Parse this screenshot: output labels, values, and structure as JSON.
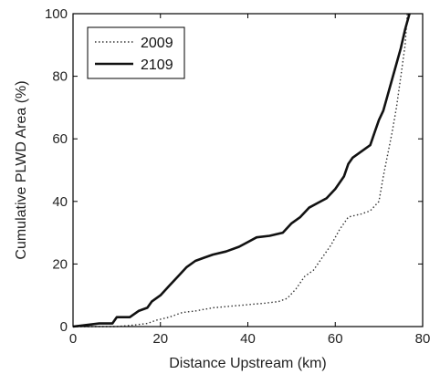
{
  "chart_data": {
    "type": "line",
    "title": "",
    "xlabel": "Distance Upstream (km)",
    "ylabel": "Cumulative PLWD Area (%)",
    "xlim": [
      0,
      80
    ],
    "ylim": [
      0,
      100
    ],
    "x_ticks": [
      "0",
      "20",
      "40",
      "60",
      "80"
    ],
    "y_ticks": [
      "0",
      "20",
      "40",
      "60",
      "80",
      "100"
    ],
    "grid": false,
    "legend_position": "top-left",
    "series": [
      {
        "name": "2009",
        "style": "dotted",
        "color": "#333333",
        "points": [
          [
            0,
            0
          ],
          [
            10,
            0
          ],
          [
            14,
            0.5
          ],
          [
            17,
            1
          ],
          [
            19,
            2
          ],
          [
            22,
            3
          ],
          [
            25,
            4.5
          ],
          [
            28,
            5
          ],
          [
            32,
            6
          ],
          [
            36,
            6.5
          ],
          [
            40,
            7
          ],
          [
            44,
            7.5
          ],
          [
            47,
            8
          ],
          [
            49,
            9
          ],
          [
            51,
            12
          ],
          [
            53,
            16
          ],
          [
            55,
            18
          ],
          [
            57,
            22
          ],
          [
            59,
            26
          ],
          [
            61,
            31
          ],
          [
            63,
            35
          ],
          [
            66,
            36
          ],
          [
            68,
            37
          ],
          [
            70,
            40
          ],
          [
            71,
            48
          ],
          [
            72,
            55
          ],
          [
            73,
            62
          ],
          [
            74,
            70
          ],
          [
            75,
            80
          ],
          [
            76,
            90
          ],
          [
            76.5,
            100
          ]
        ]
      },
      {
        "name": "2109",
        "style": "solid",
        "color": "#111111",
        "points": [
          [
            0,
            0
          ],
          [
            3,
            0.5
          ],
          [
            6,
            1
          ],
          [
            9,
            1
          ],
          [
            10,
            3
          ],
          [
            13,
            3
          ],
          [
            15,
            5
          ],
          [
            17,
            6
          ],
          [
            18,
            8
          ],
          [
            20,
            10
          ],
          [
            22,
            13
          ],
          [
            24,
            16
          ],
          [
            26,
            19
          ],
          [
            28,
            21
          ],
          [
            30,
            22
          ],
          [
            32,
            23
          ],
          [
            35,
            24
          ],
          [
            38,
            25.5
          ],
          [
            40,
            27
          ],
          [
            42,
            28.5
          ],
          [
            45,
            29
          ],
          [
            48,
            30
          ],
          [
            50,
            33
          ],
          [
            52,
            35
          ],
          [
            54,
            38
          ],
          [
            56,
            39.5
          ],
          [
            58,
            41
          ],
          [
            60,
            44
          ],
          [
            62,
            48
          ],
          [
            63,
            52
          ],
          [
            64,
            54
          ],
          [
            66,
            56
          ],
          [
            68,
            58
          ],
          [
            69,
            62
          ],
          [
            70,
            66
          ],
          [
            71,
            69
          ],
          [
            72,
            74
          ],
          [
            73,
            79
          ],
          [
            74,
            84
          ],
          [
            75,
            89
          ],
          [
            76,
            95
          ],
          [
            77,
            100
          ]
        ]
      }
    ]
  }
}
